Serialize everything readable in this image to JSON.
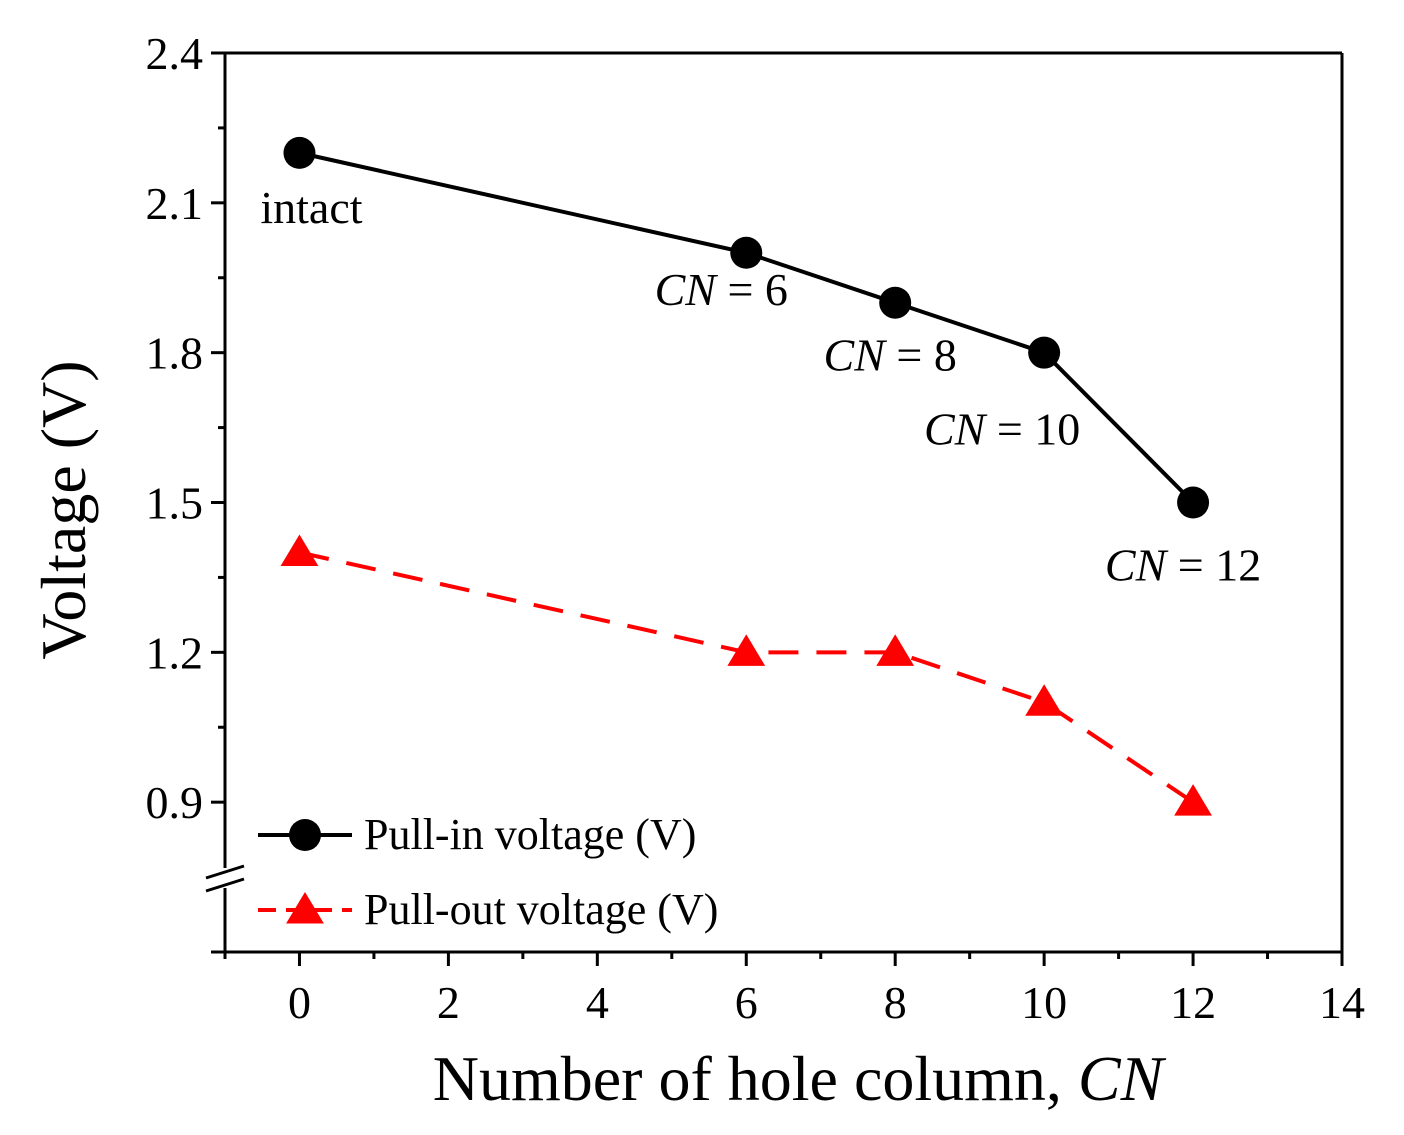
{
  "chart_data": {
    "type": "line",
    "title": "",
    "xlabel": "Number of hole column, ",
    "xlabel_italic": "CN",
    "ylabel": "Voltage (V)",
    "xlim": [
      -1,
      14
    ],
    "ylim": [
      0.6,
      2.4
    ],
    "xticks": [
      0,
      2,
      4,
      6,
      8,
      10,
      12,
      14
    ],
    "xtick_labels": [
      "0",
      "2",
      "4",
      "6",
      "8",
      "10",
      "12",
      "14"
    ],
    "yticks": [
      0.9,
      1.2,
      1.5,
      1.8,
      2.1,
      2.4
    ],
    "ytick_labels": [
      "0.9",
      "1.2",
      "1.5",
      "1.8",
      "2.1",
      "2.4"
    ],
    "axis_break": "y-axis below 0.9",
    "grid": false,
    "legend_position": "bottom-left",
    "series": [
      {
        "name": "Pull-in voltage (V)",
        "x": [
          0,
          6,
          8,
          10,
          12
        ],
        "values": [
          2.2,
          2.0,
          1.9,
          1.8,
          1.5
        ],
        "color": "#000000",
        "marker": "circle",
        "line": "solid"
      },
      {
        "name": "Pull-out voltage (V)",
        "x": [
          0,
          6,
          8,
          10,
          12
        ],
        "values": [
          1.4,
          1.2,
          1.2,
          1.1,
          0.9
        ],
        "color": "#ff0000",
        "marker": "triangle",
        "line": "dashed"
      }
    ],
    "annotations": [
      {
        "text": "intact",
        "x": 0,
        "y": 2.2
      },
      {
        "italic": "CN",
        "text": " = 6",
        "x": 6,
        "y": 2.0
      },
      {
        "italic": "CN",
        "text": " = 8",
        "x": 8,
        "y": 1.9
      },
      {
        "italic": "CN",
        "text": " = 10",
        "x": 10,
        "y": 1.8
      },
      {
        "italic": "CN",
        "text": " = 12",
        "x": 12,
        "y": 1.5
      }
    ]
  }
}
